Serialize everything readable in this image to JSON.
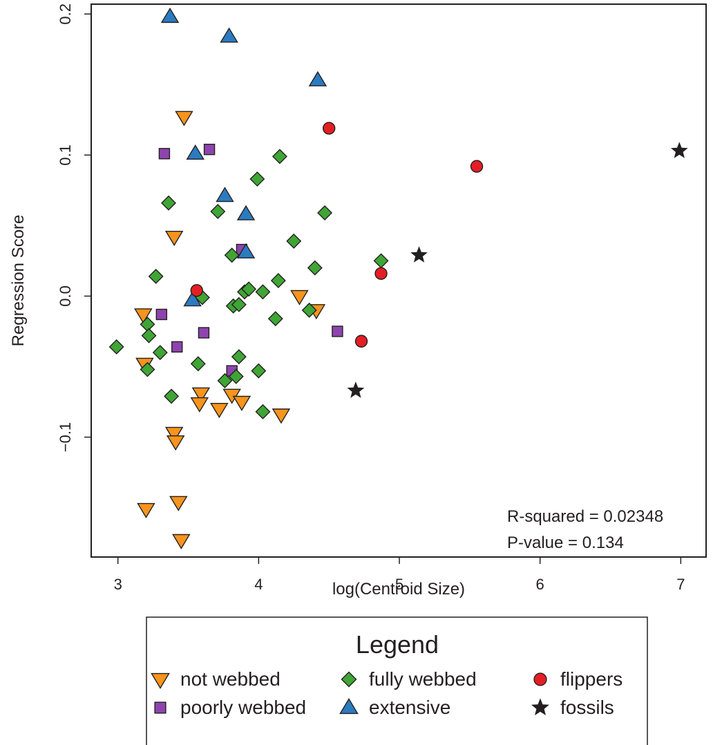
{
  "chart_data": {
    "type": "scatter",
    "xlabel": "log(Centroid Size)",
    "ylabel": "Regression Score",
    "xlim": [
      2.81,
      7.18
    ],
    "ylim": [
      -0.185,
      0.207
    ],
    "x_ticks": [
      "3",
      "4",
      "5",
      "6",
      "7"
    ],
    "y_ticks": [
      "−0.1",
      "0.0",
      "0.1",
      "0.2"
    ],
    "x_tick_values": [
      3,
      4,
      5,
      6,
      7
    ],
    "y_tick_values": [
      -0.1,
      0.0,
      0.1,
      0.2
    ],
    "grid": false,
    "legend_position": "below",
    "annotations": {
      "r_squared": "R-squared = 0.02348",
      "p_value": "P-value = 0.134"
    },
    "legend": {
      "title": "Legend",
      "entries": [
        {
          "label": "not webbed",
          "series": 0
        },
        {
          "label": "fully webbed",
          "series": 2
        },
        {
          "label": "flippers",
          "series": 4
        },
        {
          "label": "poorly webbed",
          "series": 1
        },
        {
          "label": "extensive",
          "series": 3
        },
        {
          "label": "fossils",
          "series": 5
        }
      ]
    },
    "series": [
      {
        "name": "not webbed",
        "marker": "triangle-down",
        "color": "#f7941d",
        "points": [
          [
            3.47,
            0.127
          ],
          [
            3.4,
            0.042
          ],
          [
            3.18,
            -0.013
          ],
          [
            3.19,
            -0.048
          ],
          [
            3.59,
            -0.069
          ],
          [
            3.58,
            -0.076
          ],
          [
            3.72,
            -0.08
          ],
          [
            3.81,
            -0.07
          ],
          [
            3.88,
            -0.075
          ],
          [
            4.16,
            -0.084
          ],
          [
            4.29,
            0.0
          ],
          [
            4.41,
            -0.01
          ],
          [
            3.4,
            -0.097
          ],
          [
            3.41,
            -0.103
          ],
          [
            3.2,
            -0.151
          ],
          [
            3.43,
            -0.146
          ],
          [
            3.45,
            -0.173
          ]
        ]
      },
      {
        "name": "poorly webbed",
        "marker": "square",
        "color": "#8e44ad",
        "points": [
          [
            3.33,
            0.101
          ],
          [
            3.65,
            0.104
          ],
          [
            3.88,
            0.033
          ],
          [
            3.31,
            -0.013
          ],
          [
            3.42,
            -0.036
          ],
          [
            3.61,
            -0.026
          ],
          [
            3.81,
            -0.053
          ],
          [
            4.56,
            -0.025
          ]
        ]
      },
      {
        "name": "fully webbed",
        "marker": "diamond",
        "color": "#3fa535",
        "points": [
          [
            4.15,
            0.099
          ],
          [
            3.99,
            0.083
          ],
          [
            3.36,
            0.066
          ],
          [
            3.71,
            0.06
          ],
          [
            4.47,
            0.059
          ],
          [
            4.25,
            0.039
          ],
          [
            3.81,
            0.029
          ],
          [
            4.87,
            0.025
          ],
          [
            4.4,
            0.02
          ],
          [
            3.27,
            0.014
          ],
          [
            4.14,
            0.011
          ],
          [
            3.9,
            0.003
          ],
          [
            3.93,
            0.005
          ],
          [
            4.03,
            0.003
          ],
          [
            3.6,
            -0.001
          ],
          [
            3.82,
            -0.007
          ],
          [
            3.86,
            -0.006
          ],
          [
            4.36,
            -0.01
          ],
          [
            4.12,
            -0.016
          ],
          [
            3.21,
            -0.02
          ],
          [
            3.22,
            -0.028
          ],
          [
            2.99,
            -0.036
          ],
          [
            3.3,
            -0.04
          ],
          [
            3.86,
            -0.043
          ],
          [
            3.57,
            -0.048
          ],
          [
            3.21,
            -0.052
          ],
          [
            4.0,
            -0.053
          ],
          [
            3.84,
            -0.057
          ],
          [
            3.76,
            -0.06
          ],
          [
            3.38,
            -0.071
          ],
          [
            4.03,
            -0.082
          ]
        ]
      },
      {
        "name": "extensive",
        "marker": "triangle-up",
        "color": "#2b7bc0",
        "points": [
          [
            3.37,
            0.198
          ],
          [
            3.79,
            0.184
          ],
          [
            4.42,
            0.153
          ],
          [
            3.55,
            0.101
          ],
          [
            3.76,
            0.071
          ],
          [
            3.91,
            0.058
          ],
          [
            3.91,
            0.031
          ],
          [
            3.53,
            -0.003
          ]
        ]
      },
      {
        "name": "flippers",
        "marker": "circle",
        "color": "#e31e24",
        "points": [
          [
            4.5,
            0.119
          ],
          [
            5.55,
            0.092
          ],
          [
            4.87,
            0.016
          ],
          [
            3.56,
            0.004
          ],
          [
            4.73,
            -0.032
          ]
        ]
      },
      {
        "name": "fossils",
        "marker": "star",
        "color": "#231f20",
        "points": [
          [
            6.99,
            0.103
          ],
          [
            5.14,
            0.029
          ],
          [
            4.69,
            -0.067
          ]
        ]
      }
    ]
  }
}
